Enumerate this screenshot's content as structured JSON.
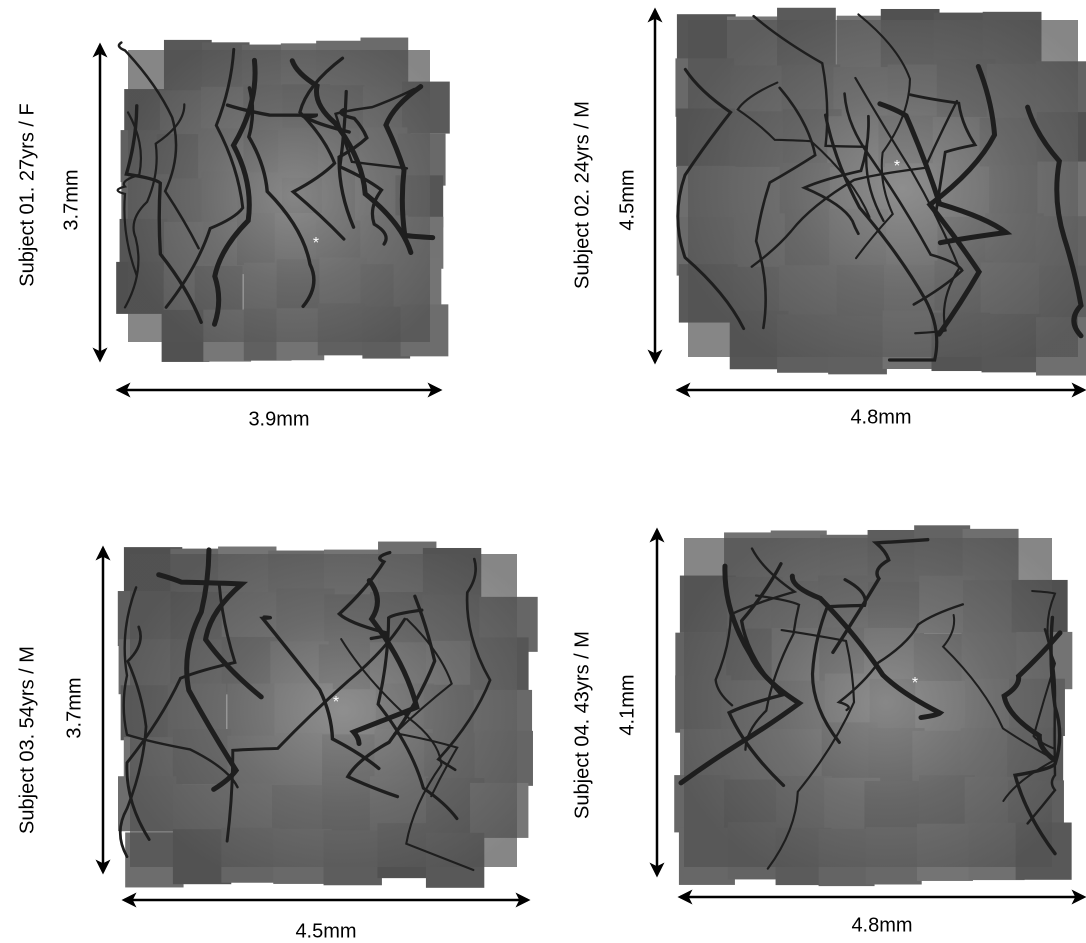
{
  "panels": [
    {
      "label": "Subject 01. 27yrs / F",
      "height": "3.7mm",
      "width": "3.9mm",
      "marker": "*"
    },
    {
      "label": "Subject 02. 24yrs / M",
      "height": "4.5mm",
      "width": "4.8mm",
      "marker": "*"
    },
    {
      "label": "Subject 03. 54yrs / M",
      "height": "3.7mm",
      "width": "4.5mm",
      "marker": "*"
    },
    {
      "label": "Subject 04. 43yrs / M",
      "height": "4.1mm",
      "width": "4.8mm",
      "marker": "*"
    }
  ]
}
